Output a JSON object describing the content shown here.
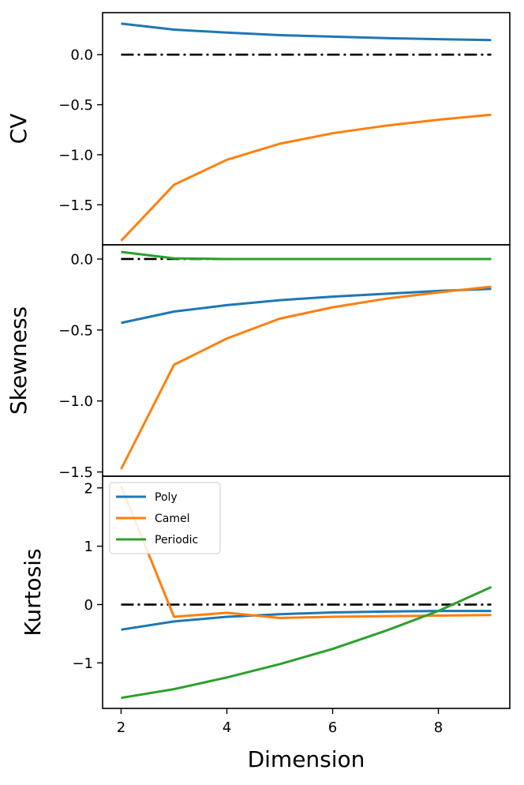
{
  "chart_data": {
    "type": "line",
    "xlabel": "Dimension",
    "x": [
      2,
      3,
      4,
      5,
      6,
      7,
      8,
      9
    ],
    "xlim": [
      1.65,
      9.35
    ],
    "xticks": [
      2,
      4,
      6,
      8
    ],
    "legend": {
      "placement": "upper-left",
      "panel": "Kurtosis"
    },
    "grid": false,
    "colors": {
      "Poly": "#1f77b4",
      "Camel": "#ff7f0e",
      "Periodic": "#2ca02c",
      "zero_line": "#000000"
    },
    "panels": [
      {
        "ylabel": "CV",
        "ylim": [
          -1.9,
          0.42
        ],
        "yticks": [
          0.0,
          -0.5,
          -1.0,
          -1.5
        ],
        "ytick_labels": [
          "0.0",
          "−0.5",
          "−1.0",
          "−1.5"
        ],
        "reference_line": 0,
        "series": [
          {
            "name": "Poly",
            "values": [
              0.31,
              0.25,
              0.22,
              0.195,
              0.18,
              0.165,
              0.155,
              0.145
            ]
          },
          {
            "name": "Camel",
            "values": [
              -1.86,
              -1.3,
              -1.05,
              -0.89,
              -0.785,
              -0.71,
              -0.65,
              -0.6
            ]
          }
        ]
      },
      {
        "ylabel": "Skewness",
        "ylim": [
          -1.53,
          0.1
        ],
        "yticks": [
          0.0,
          -0.5,
          -1.0,
          -1.5
        ],
        "ytick_labels": [
          "0.0",
          "−0.5",
          "−1.0",
          "−1.5"
        ],
        "reference_line": 0,
        "series": [
          {
            "name": "Poly",
            "values": [
              -0.45,
              -0.37,
              -0.325,
              -0.29,
              -0.265,
              -0.245,
              -0.225,
              -0.21
            ]
          },
          {
            "name": "Camel",
            "values": [
              -1.48,
              -0.745,
              -0.56,
              -0.42,
              -0.34,
              -0.28,
              -0.235,
              -0.195
            ]
          },
          {
            "name": "Periodic",
            "values": [
              0.05,
              0.005,
              0.0,
              0.0,
              0.0,
              0.0,
              0.0,
              0.0
            ]
          }
        ]
      },
      {
        "ylabel": "Kurtosis",
        "ylim": [
          -1.78,
          2.2
        ],
        "yticks": [
          2,
          1,
          0,
          -1
        ],
        "ytick_labels": [
          "2",
          "1",
          "0",
          "−1"
        ],
        "reference_line": 0,
        "series": [
          {
            "name": "Poly",
            "values": [
              -0.43,
              -0.29,
              -0.21,
              -0.165,
              -0.135,
              -0.12,
              -0.11,
              -0.11
            ]
          },
          {
            "name": "Camel",
            "values": [
              2.03,
              -0.21,
              -0.14,
              -0.23,
              -0.21,
              -0.2,
              -0.19,
              -0.18
            ]
          },
          {
            "name": "Periodic",
            "values": [
              -1.6,
              -1.45,
              -1.25,
              -1.02,
              -0.76,
              -0.45,
              -0.11,
              0.3
            ]
          }
        ]
      }
    ]
  }
}
